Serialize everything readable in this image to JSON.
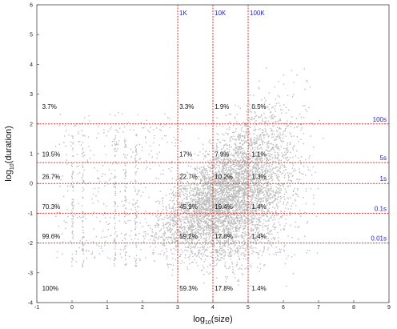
{
  "chart_data": {
    "type": "scatter",
    "xlabel": "log",
    "xlabel_sub": "10",
    "xlabel_suffix": "(size)",
    "ylabel": "log",
    "ylabel_sub": "10",
    "ylabel_suffix": "(duration)",
    "xlim": [
      -1,
      9
    ],
    "ylim": [
      -4,
      6
    ],
    "x_ticks": [
      "-1",
      "0",
      "1",
      "2",
      "3",
      "4",
      "5",
      "6",
      "7",
      "8",
      "9"
    ],
    "y_ticks": [
      "6",
      "5",
      "4",
      "3",
      "2",
      "1",
      "0",
      "-1",
      "-2",
      "-3",
      "-4"
    ],
    "size_thresholds": [
      {
        "x": 3,
        "label": "1K"
      },
      {
        "x": 4,
        "label": "10K"
      },
      {
        "x": 5,
        "label": "100K"
      }
    ],
    "duration_thresholds": [
      {
        "y": 2,
        "label": "100s"
      },
      {
        "y": 0.7,
        "label": "5s"
      },
      {
        "y": 0,
        "label": "1s"
      },
      {
        "y": -1,
        "label": "0.1s"
      },
      {
        "y": -2,
        "label": "0.01s"
      }
    ],
    "percent_rows": [
      {
        "y": 2.5,
        "values": [
          "3.7%",
          "3.3%",
          "1.9%",
          "0.5%"
        ]
      },
      {
        "y": 0.9,
        "values": [
          "19.5%",
          "17%",
          "7.9%",
          "1.1%"
        ]
      },
      {
        "y": 0.15,
        "values": [
          "26.7%",
          "22.7%",
          "10.2%",
          "1.3%"
        ]
      },
      {
        "y": -0.85,
        "values": [
          "70.3%",
          "45.9%",
          "19.4%",
          "1.4%"
        ]
      },
      {
        "y": -1.85,
        "values": [
          "99.6%",
          "59.2%",
          "17.8%",
          "1.4%"
        ]
      },
      {
        "y": -3.6,
        "values": [
          "100%",
          "59.3%",
          "17.8%",
          "1.4%"
        ]
      }
    ],
    "percent_columns_x": [
      -0.85,
      3.05,
      4.05,
      5.1
    ],
    "grid": false,
    "colors": {
      "points": "#bdbdbd",
      "threshold_lines": "#e03030",
      "threshold_labels": "#2222cc"
    }
  }
}
